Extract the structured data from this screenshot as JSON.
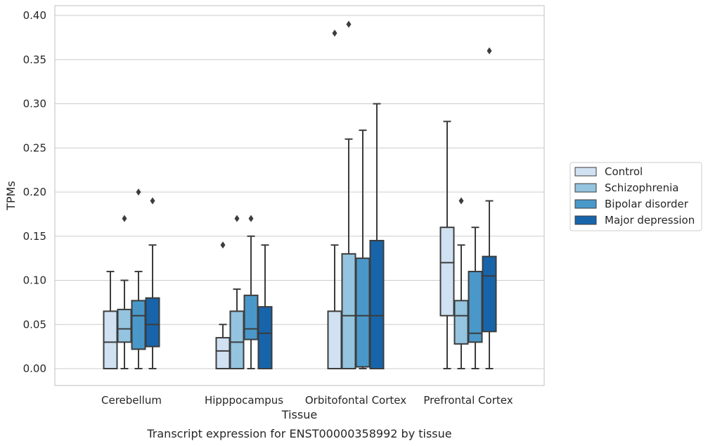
{
  "chart_data": {
    "type": "box",
    "xlabel": "Tissue",
    "ylabel": "TPMs",
    "caption": "Transcript expression for ENST00000358992 by tissue",
    "ylim": [
      -0.02,
      0.41
    ],
    "yticks": [
      "0.00",
      "0.05",
      "0.10",
      "0.15",
      "0.20",
      "0.25",
      "0.30",
      "0.35",
      "0.40"
    ],
    "grid": "horizontal",
    "legend_position": "right",
    "categories": [
      "Cerebellum",
      "Hipppocampus",
      "Orbitofontal Cortex",
      "Prefrontal Cortex"
    ],
    "series": [
      {
        "name": "Control",
        "color": "#d0e1f2",
        "boxes": [
          {
            "whislo": 0.0,
            "q1": 0.0,
            "med": 0.03,
            "q3": 0.065,
            "whishi": 0.11,
            "fliers": []
          },
          {
            "whislo": 0.0,
            "q1": 0.0,
            "med": 0.02,
            "q3": 0.035,
            "whishi": 0.05,
            "fliers": [
              0.14
            ]
          },
          {
            "whislo": 0.0,
            "q1": 0.0,
            "med": 0.0,
            "q3": 0.065,
            "whishi": 0.14,
            "fliers": [
              0.38
            ]
          },
          {
            "whislo": 0.0,
            "q1": 0.06,
            "med": 0.12,
            "q3": 0.16,
            "whishi": 0.28,
            "fliers": []
          }
        ]
      },
      {
        "name": "Schizophrenia",
        "color": "#94c4df",
        "boxes": [
          {
            "whislo": 0.0,
            "q1": 0.03,
            "med": 0.045,
            "q3": 0.067,
            "whishi": 0.1,
            "fliers": [
              0.17
            ]
          },
          {
            "whislo": 0.0,
            "q1": 0.0,
            "med": 0.03,
            "q3": 0.065,
            "whishi": 0.09,
            "fliers": [
              0.17
            ]
          },
          {
            "whislo": 0.0,
            "q1": 0.0,
            "med": 0.06,
            "q3": 0.13,
            "whishi": 0.26,
            "fliers": [
              0.39
            ]
          },
          {
            "whislo": 0.0,
            "q1": 0.028,
            "med": 0.06,
            "q3": 0.077,
            "whishi": 0.14,
            "fliers": [
              0.19
            ]
          }
        ]
      },
      {
        "name": "Bipolar disorder",
        "color": "#4a98c9",
        "boxes": [
          {
            "whislo": 0.0,
            "q1": 0.022,
            "med": 0.06,
            "q3": 0.077,
            "whishi": 0.11,
            "fliers": [
              0.2
            ]
          },
          {
            "whislo": 0.0,
            "q1": 0.033,
            "med": 0.045,
            "q3": 0.083,
            "whishi": 0.15,
            "fliers": [
              0.17
            ]
          },
          {
            "whislo": 0.0,
            "q1": 0.002,
            "med": 0.06,
            "q3": 0.125,
            "whishi": 0.27,
            "fliers": []
          },
          {
            "whislo": 0.0,
            "q1": 0.03,
            "med": 0.04,
            "q3": 0.11,
            "whishi": 0.16,
            "fliers": []
          }
        ]
      },
      {
        "name": "Major depression",
        "color": "#1764ab",
        "boxes": [
          {
            "whislo": 0.0,
            "q1": 0.025,
            "med": 0.05,
            "q3": 0.08,
            "whishi": 0.14,
            "fliers": [
              0.19
            ]
          },
          {
            "whislo": 0.0,
            "q1": 0.0,
            "med": 0.04,
            "q3": 0.07,
            "whishi": 0.14,
            "fliers": []
          },
          {
            "whislo": 0.0,
            "q1": 0.0,
            "med": 0.06,
            "q3": 0.145,
            "whishi": 0.3,
            "fliers": []
          },
          {
            "whislo": 0.0,
            "q1": 0.042,
            "med": 0.105,
            "q3": 0.127,
            "whishi": 0.19,
            "fliers": [
              0.36
            ]
          }
        ]
      }
    ]
  }
}
